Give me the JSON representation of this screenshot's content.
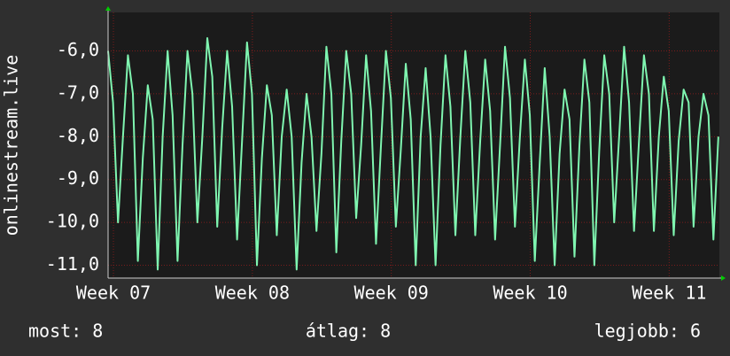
{
  "chart_data": {
    "type": "line",
    "y_label": "onlinestream.live",
    "x": [
      0,
      0.25,
      0.5,
      0.75,
      1,
      1.25,
      1.5,
      1.75,
      2,
      2.25,
      2.5,
      2.75,
      3,
      3.25,
      3.5,
      3.75,
      4,
      4.25,
      4.5,
      4.75,
      5,
      5.25,
      5.5,
      5.75,
      6,
      6.25,
      6.5,
      6.75,
      7,
      7.25,
      7.5,
      7.75,
      8,
      8.25,
      8.5,
      8.75,
      9,
      9.25,
      9.5,
      9.75,
      10,
      10.25,
      10.5,
      10.75,
      11,
      11.25,
      11.5,
      11.75,
      12,
      12.25,
      12.5,
      12.75,
      13,
      13.25,
      13.5,
      13.75,
      14,
      14.25,
      14.5,
      14.75,
      15,
      15.25,
      15.5,
      15.75,
      16,
      16.25,
      16.5,
      16.75,
      17,
      17.25,
      17.5,
      17.75,
      18,
      18.25,
      18.5,
      18.75,
      19,
      19.25,
      19.5,
      19.75,
      20,
      20.25,
      20.5,
      20.75,
      21,
      21.25,
      21.5,
      21.75,
      22,
      22.25,
      22.5,
      22.75,
      23,
      23.25,
      23.5,
      23.75,
      24,
      24.25,
      24.5,
      24.75,
      25,
      25.25,
      25.5,
      25.75,
      26,
      26.25,
      26.5,
      26.75,
      27,
      27.25,
      27.5,
      27.75,
      28,
      28.25,
      28.5,
      28.75,
      29,
      29.25,
      29.5,
      29.75,
      30,
      30.25,
      30.5,
      30.75
    ],
    "series": [
      {
        "name": "onlinestream.live",
        "color": "#7ff5b0",
        "values": [
          -6.0,
          -7.2,
          -10.0,
          -8.0,
          -6.1,
          -7.0,
          -10.9,
          -8.5,
          -6.8,
          -7.6,
          -11.1,
          -8.0,
          -6.0,
          -7.5,
          -10.9,
          -8.2,
          -6.0,
          -7.0,
          -10.0,
          -8.0,
          -5.7,
          -6.6,
          -10.1,
          -7.8,
          -6.0,
          -7.3,
          -10.4,
          -8.1,
          -5.8,
          -7.0,
          -11.0,
          -8.5,
          -6.8,
          -7.5,
          -10.3,
          -8.0,
          -6.9,
          -8.0,
          -11.1,
          -8.6,
          -7.0,
          -8.0,
          -10.2,
          -8.4,
          -5.9,
          -7.0,
          -10.7,
          -8.1,
          -6.0,
          -7.0,
          -9.9,
          -8.2,
          -6.1,
          -7.4,
          -10.5,
          -8.2,
          -6.0,
          -7.1,
          -10.1,
          -8.3,
          -6.3,
          -7.6,
          -11.0,
          -8.0,
          -6.4,
          -8.0,
          -11.0,
          -8.2,
          -6.1,
          -7.3,
          -10.3,
          -8.0,
          -6.0,
          -7.2,
          -10.3,
          -8.1,
          -6.2,
          -7.4,
          -10.4,
          -8.2,
          -5.9,
          -7.1,
          -10.1,
          -8.0,
          -6.2,
          -7.5,
          -10.9,
          -8.6,
          -6.4,
          -8.0,
          -11.0,
          -8.4,
          -6.9,
          -7.6,
          -10.8,
          -8.2,
          -6.2,
          -7.2,
          -11.0,
          -8.3,
          -6.1,
          -7.0,
          -10.0,
          -8.0,
          -5.9,
          -7.2,
          -10.2,
          -8.1,
          -6.1,
          -7.0,
          -10.2,
          -8.0,
          -6.6,
          -7.4,
          -10.3,
          -8.1,
          -6.9,
          -7.2,
          -10.1,
          -8.0,
          -7.0,
          -7.5,
          -10.4,
          -8.0
        ]
      }
    ],
    "xlim": [
      0,
      30.8
    ],
    "xticks": [
      {
        "value": 0.27,
        "label": "Week 07"
      },
      {
        "value": 7.27,
        "label": "Week 08"
      },
      {
        "value": 14.27,
        "label": "Week 09"
      },
      {
        "value": 21.27,
        "label": "Week 10"
      },
      {
        "value": 28.27,
        "label": "Week 11"
      }
    ],
    "ylim": [
      -11.3,
      -5.1
    ],
    "yticks": [
      {
        "value": -6,
        "label": "-6,0"
      },
      {
        "value": -7,
        "label": "-7,0"
      },
      {
        "value": -8,
        "label": "-8,0"
      },
      {
        "value": -9,
        "label": "-9,0"
      },
      {
        "value": -10,
        "label": "-10,0"
      },
      {
        "value": -11,
        "label": "-11,0"
      }
    ],
    "grid": true,
    "stats": [
      "most: 8",
      "átlag: 8",
      "legjobb: 6"
    ]
  }
}
